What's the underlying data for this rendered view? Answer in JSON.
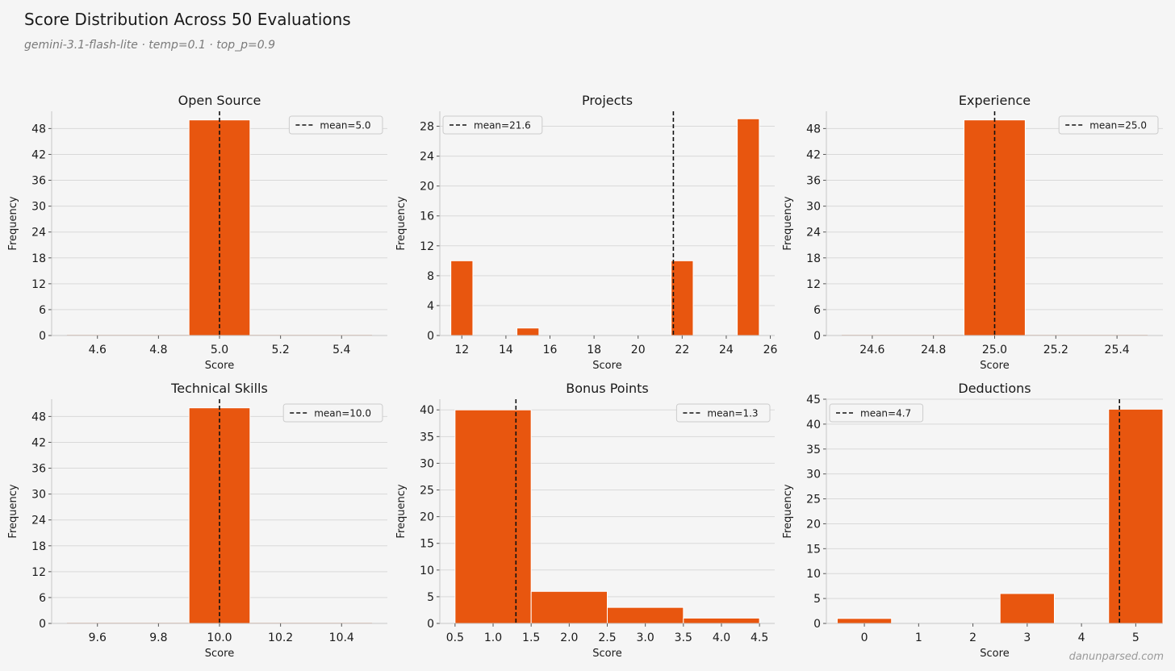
{
  "figure": {
    "title": "Score Distribution Across 50 Evaluations",
    "subtitle": "gemini-3.1-flash-lite · temp=0.1 · top_p=0.9",
    "watermark": "danunparsed.com"
  },
  "colors": {
    "background": "#f5f5f5",
    "bar": "#e8560f",
    "bar_edge": "#ffffff",
    "grid": "#d9d9d9",
    "axis": "#c8c8c8",
    "text": "#1a1a1a",
    "mean_line": "#111111"
  },
  "chart_data": [
    {
      "type": "bar",
      "title": "Open Source",
      "xlabel": "Score",
      "ylabel": "Frequency",
      "xlim": [
        4.45,
        5.55
      ],
      "ylim": [
        0,
        52
      ],
      "xticks": [
        4.6,
        4.8,
        5.0,
        5.2,
        5.4
      ],
      "xtick_labels": [
        "4.6",
        "4.8",
        "5.0",
        "5.2",
        "5.4"
      ],
      "yticks": [
        0,
        6,
        12,
        18,
        24,
        30,
        36,
        42,
        48
      ],
      "yticks_labels": [
        "0",
        "6",
        "12",
        "18",
        "24",
        "30",
        "36",
        "42",
        "48"
      ],
      "bins": [
        {
          "x0": 4.5,
          "x1": 4.9,
          "value": 0
        },
        {
          "x0": 4.9,
          "x1": 5.1,
          "value": 50
        },
        {
          "x0": 5.1,
          "x1": 5.5,
          "value": 0
        }
      ],
      "mean": 5.0,
      "legend": {
        "label": "mean=5.0",
        "position": "top-right"
      },
      "grid": "y"
    },
    {
      "type": "bar",
      "title": "Projects",
      "xlabel": "Score",
      "ylabel": "Frequency",
      "xlim": [
        11.0,
        26.2
      ],
      "ylim": [
        0,
        30
      ],
      "xticks": [
        12,
        14,
        16,
        18,
        20,
        22,
        24,
        26
      ],
      "xtick_labels": [
        "12",
        "14",
        "16",
        "18",
        "20",
        "22",
        "24",
        "26"
      ],
      "yticks": [
        0,
        4,
        8,
        12,
        16,
        20,
        24,
        28
      ],
      "yticks_labels": [
        "0",
        "4",
        "8",
        "12",
        "16",
        "20",
        "24",
        "28"
      ],
      "bins": [
        {
          "x0": 11.5,
          "x1": 12.5,
          "value": 10
        },
        {
          "x0": 14.5,
          "x1": 15.5,
          "value": 1
        },
        {
          "x0": 21.5,
          "x1": 22.5,
          "value": 10
        },
        {
          "x0": 24.5,
          "x1": 25.5,
          "value": 29
        }
      ],
      "mean": 21.6,
      "legend": {
        "label": "mean=21.6",
        "position": "top-left"
      },
      "grid": "y"
    },
    {
      "type": "bar",
      "title": "Experience",
      "xlabel": "Score",
      "ylabel": "Frequency",
      "xlim": [
        24.45,
        25.55
      ],
      "ylim": [
        0,
        52
      ],
      "xticks": [
        24.6,
        24.8,
        25.0,
        25.2,
        25.4
      ],
      "xtick_labels": [
        "24.6",
        "24.8",
        "25.0",
        "25.2",
        "25.4"
      ],
      "yticks": [
        0,
        6,
        12,
        18,
        24,
        30,
        36,
        42,
        48
      ],
      "yticks_labels": [
        "0",
        "6",
        "12",
        "18",
        "24",
        "30",
        "36",
        "42",
        "48"
      ],
      "bins": [
        {
          "x0": 24.5,
          "x1": 24.9,
          "value": 0
        },
        {
          "x0": 24.9,
          "x1": 25.1,
          "value": 50
        },
        {
          "x0": 25.1,
          "x1": 25.5,
          "value": 0
        }
      ],
      "mean": 25.0,
      "legend": {
        "label": "mean=25.0",
        "position": "top-right"
      },
      "grid": "y"
    },
    {
      "type": "bar",
      "title": "Technical Skills",
      "xlabel": "Score",
      "ylabel": "Frequency",
      "xlim": [
        9.45,
        10.55
      ],
      "ylim": [
        0,
        52
      ],
      "xticks": [
        9.6,
        9.8,
        10.0,
        10.2,
        10.4
      ],
      "xtick_labels": [
        "9.6",
        "9.8",
        "10.0",
        "10.2",
        "10.4"
      ],
      "yticks": [
        0,
        6,
        12,
        18,
        24,
        30,
        36,
        42,
        48
      ],
      "yticks_labels": [
        "0",
        "6",
        "12",
        "18",
        "24",
        "30",
        "36",
        "42",
        "48"
      ],
      "bins": [
        {
          "x0": 9.5,
          "x1": 9.9,
          "value": 0
        },
        {
          "x0": 9.9,
          "x1": 10.1,
          "value": 50
        },
        {
          "x0": 10.1,
          "x1": 10.5,
          "value": 0
        }
      ],
      "mean": 10.0,
      "legend": {
        "label": "mean=10.0",
        "position": "top-right"
      },
      "grid": "y"
    },
    {
      "type": "bar",
      "title": "Bonus Points",
      "xlabel": "Score",
      "ylabel": "Frequency",
      "xlim": [
        0.3,
        4.7
      ],
      "ylim": [
        0,
        42
      ],
      "xticks": [
        0.5,
        1.0,
        1.5,
        2.0,
        2.5,
        3.0,
        3.5,
        4.0,
        4.5
      ],
      "xtick_labels": [
        "0.5",
        "1.0",
        "1.5",
        "2.0",
        "2.5",
        "3.0",
        "3.5",
        "4.0",
        "4.5"
      ],
      "yticks": [
        0,
        5,
        10,
        15,
        20,
        25,
        30,
        35,
        40
      ],
      "yticks_labels": [
        "0",
        "5",
        "10",
        "15",
        "20",
        "25",
        "30",
        "35",
        "40"
      ],
      "bins": [
        {
          "x0": 0.5,
          "x1": 1.5,
          "value": 40
        },
        {
          "x0": 1.5,
          "x1": 2.5,
          "value": 6
        },
        {
          "x0": 2.5,
          "x1": 3.5,
          "value": 3
        },
        {
          "x0": 3.5,
          "x1": 4.5,
          "value": 1
        }
      ],
      "mean": 1.3,
      "legend": {
        "label": "mean=1.3",
        "position": "top-right"
      },
      "grid": "y"
    },
    {
      "type": "bar",
      "title": "Deductions",
      "xlabel": "Score",
      "ylabel": "Frequency",
      "xlim": [
        -0.7,
        5.5
      ],
      "ylim": [
        0,
        45
      ],
      "xticks": [
        0,
        1,
        2,
        3,
        4,
        5
      ],
      "xtick_labels": [
        "0",
        "1",
        "2",
        "3",
        "4",
        "5"
      ],
      "yticks": [
        0,
        5,
        10,
        15,
        20,
        25,
        30,
        35,
        40,
        45
      ],
      "yticks_labels": [
        "0",
        "5",
        "10",
        "15",
        "20",
        "25",
        "30",
        "35",
        "40",
        "45"
      ],
      "bins": [
        {
          "x0": -0.5,
          "x1": 0.5,
          "value": 1
        },
        {
          "x0": 2.5,
          "x1": 3.5,
          "value": 6
        },
        {
          "x0": 4.5,
          "x1": 5.5,
          "value": 43
        }
      ],
      "mean": 4.7,
      "legend": {
        "label": "mean=4.7",
        "position": "top-left"
      },
      "grid": "y"
    }
  ]
}
